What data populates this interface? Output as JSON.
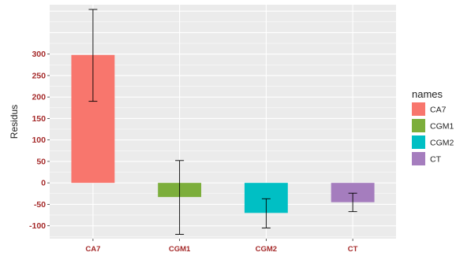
{
  "chart_data": {
    "type": "bar",
    "categories": [
      "CA7",
      "CGM1",
      "CGM2",
      "CT"
    ],
    "values": [
      298,
      -33,
      -70,
      -45
    ],
    "error_bars": [
      {
        "low": 190,
        "high": 404
      },
      {
        "low": -120,
        "high": 52
      },
      {
        "low": -105,
        "high": -37
      },
      {
        "low": -67,
        "high": -24
      }
    ],
    "colors": [
      "#F8766D",
      "#7CAE3B",
      "#00BFC4",
      "#A57DBE"
    ],
    "ylabel": "Residus",
    "xlabel": "",
    "ylim": [
      -130,
      415
    ],
    "yticks": [
      -100,
      -50,
      0,
      50,
      100,
      150,
      200,
      250,
      300
    ],
    "grid": true,
    "legend": {
      "title": "names",
      "position": "right",
      "items": [
        "CA7",
        "CGM1",
        "CGM2",
        "CT"
      ]
    },
    "tick_label_color": "#A52A2A",
    "panel_background": "#EBEBEB"
  }
}
